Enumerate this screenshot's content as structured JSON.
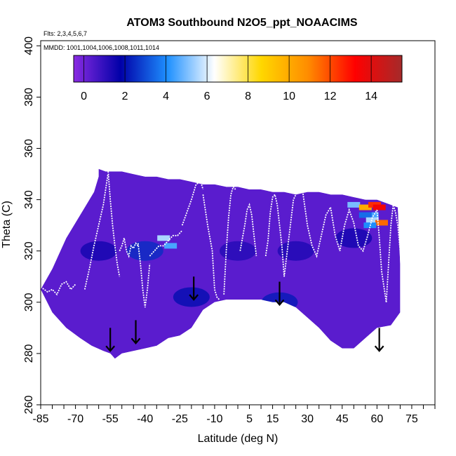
{
  "chart_data": {
    "type": "heatmap",
    "title": "ATOM3 Southbound N2O5_ppt_NOAACIMS",
    "flights_note": "Flts: 2,3,4,5,6,7",
    "dates_note": "MMDD: 1001,1004,1006,1008,1011,1014",
    "xlabel": "Latitude (deg N)",
    "ylabel": "Theta (C)",
    "xlim": [
      -85,
      85
    ],
    "ylim": [
      260,
      402
    ],
    "x_ticks": [
      -85,
      -70,
      -55,
      -40,
      -25,
      -10,
      5,
      15,
      30,
      45,
      60,
      75
    ],
    "y_ticks": [
      260,
      280,
      300,
      320,
      340,
      360,
      380,
      400
    ],
    "colorbar": {
      "range": [
        -0.5,
        15.5
      ],
      "ticks": [
        0,
        2,
        4,
        6,
        8,
        10,
        12,
        14
      ],
      "colors": [
        "#8a2be2",
        "#0000a8",
        "#1e90ff",
        "#ffffff",
        "#ffd700",
        "#ff8c00",
        "#ff0000",
        "#a52a2a"
      ]
    },
    "field_outline": {
      "lat": [
        -85,
        -80,
        -77,
        -74,
        -70,
        -66,
        -62,
        -60,
        -60,
        -57,
        -53,
        -50,
        -45,
        -40,
        -35,
        -30,
        -25,
        -20,
        -15,
        -10,
        -5,
        0,
        5,
        10,
        15,
        20,
        25,
        30,
        35,
        40,
        45,
        50,
        55,
        60,
        63,
        66,
        69,
        70,
        70,
        66,
        60,
        55,
        50,
        45,
        40,
        35,
        30,
        25,
        20,
        15,
        10,
        5,
        0,
        -5,
        -10,
        -15,
        -20,
        -25,
        -30,
        -35,
        -40,
        -45,
        -50,
        -53,
        -55,
        -58,
        -63,
        -68,
        -74,
        -80,
        -85
      ],
      "theta": [
        305,
        313,
        319,
        325,
        331,
        337,
        343,
        349,
        352,
        351,
        351,
        351,
        350,
        349,
        349,
        348,
        348,
        347,
        346,
        346,
        345,
        345,
        344,
        344,
        343,
        343,
        342,
        343,
        343,
        342,
        342,
        341,
        340,
        340,
        339,
        338,
        337,
        315,
        296,
        291,
        290,
        286,
        282,
        282,
        285,
        290,
        294,
        298,
        300,
        300,
        301,
        301,
        301,
        301,
        300,
        297,
        290,
        287,
        286,
        283,
        282,
        281,
        280,
        278,
        280,
        281,
        283,
        286,
        290,
        296,
        305
      ]
    },
    "troughs": [
      {
        "lat": -60,
        "theta": 320,
        "value": 1.5
      },
      {
        "lat": -40,
        "theta": 320,
        "value": 2.5
      },
      {
        "lat": -20,
        "theta": 302,
        "value": 2.0
      },
      {
        "lat": 0,
        "theta": 320,
        "value": 1.2
      },
      {
        "lat": 18,
        "theta": 300,
        "value": 2.2
      },
      {
        "lat": 25,
        "theta": 320,
        "value": 1.3
      },
      {
        "lat": 50,
        "theta": 325,
        "value": 1.5
      }
    ],
    "hotspots": [
      {
        "lat": -32,
        "theta": 325,
        "value": 5.5
      },
      {
        "lat": -29,
        "theta": 322,
        "value": 4.5
      },
      {
        "lat": 50,
        "theta": 338,
        "value": 5.0
      },
      {
        "lat": 55,
        "theta": 337,
        "value": 10.0
      },
      {
        "lat": 59,
        "theta": 338,
        "value": 12.5
      },
      {
        "lat": 61,
        "theta": 337,
        "value": 13.5
      },
      {
        "lat": 58,
        "theta": 334,
        "value": 4.5
      },
      {
        "lat": 55,
        "theta": 334,
        "value": 3.5
      },
      {
        "lat": 58,
        "theta": 332,
        "value": 5.5
      },
      {
        "lat": 62,
        "theta": 331,
        "value": 11.5
      },
      {
        "lat": 57,
        "theta": 330,
        "value": 4.0
      }
    ],
    "flight_tracks": [
      {
        "lat": [
          -85,
          -82,
          -80,
          -78,
          -76,
          -74,
          -72,
          -70
        ],
        "theta": [
          306,
          304,
          305,
          303,
          307,
          308,
          305,
          307
        ]
      },
      {
        "lat": [
          -66,
          -64,
          -62,
          -60,
          -58,
          -57,
          -56
        ],
        "theta": [
          305,
          313,
          322,
          330,
          338,
          344,
          350
        ]
      },
      {
        "lat": [
          -56,
          -55,
          -54,
          -53,
          -52,
          -51
        ],
        "theta": [
          352,
          340,
          330,
          322,
          315,
          310
        ]
      },
      {
        "lat": [
          -51,
          -50,
          -49,
          -48,
          -47,
          -46,
          -45,
          -44,
          -43
        ],
        "theta": [
          320,
          322,
          325,
          320,
          318,
          322,
          321,
          323,
          322
        ]
      },
      {
        "lat": [
          -43,
          -42,
          -41,
          -40,
          -39,
          -38
        ],
        "theta": [
          323,
          315,
          305,
          298,
          305,
          315
        ]
      },
      {
        "lat": [
          -38,
          -36,
          -34,
          -32,
          -30,
          -28,
          -26,
          -24
        ],
        "theta": [
          318,
          320,
          322,
          322,
          324,
          326,
          326,
          328
        ]
      },
      {
        "lat": [
          -24,
          -22,
          -20,
          -18,
          -16,
          -15
        ],
        "theta": [
          330,
          335,
          340,
          346,
          347,
          344
        ]
      },
      {
        "lat": [
          -15,
          -13,
          -11,
          -10,
          -9,
          -8
        ],
        "theta": [
          342,
          330,
          320,
          305,
          302,
          301
        ]
      },
      {
        "lat": [
          -6,
          -5,
          -4,
          -3,
          -2,
          -1
        ],
        "theta": [
          303,
          320,
          333,
          342,
          345,
          344
        ]
      },
      {
        "lat": [
          1,
          3,
          4,
          5,
          6,
          7,
          8
        ],
        "theta": [
          320,
          330,
          336,
          338,
          334,
          326,
          318
        ]
      },
      {
        "lat": [
          12,
          13,
          14,
          15,
          16,
          17,
          18,
          19,
          20
        ],
        "theta": [
          318,
          324,
          335,
          341,
          342,
          338,
          330,
          322,
          310
        ]
      },
      {
        "lat": [
          20,
          22,
          24,
          26,
          28,
          30
        ],
        "theta": [
          310,
          325,
          340,
          344,
          343,
          330
        ]
      },
      {
        "lat": [
          30,
          32,
          34,
          36,
          38,
          40
        ],
        "theta": [
          330,
          322,
          318,
          326,
          334,
          337
        ]
      },
      {
        "lat": [
          40,
          42,
          44,
          46,
          48,
          50
        ],
        "theta": [
          337,
          326,
          320,
          330,
          336,
          331
        ]
      },
      {
        "lat": [
          50,
          52,
          54,
          56,
          58,
          60
        ],
        "theta": [
          331,
          322,
          320,
          326,
          333,
          336
        ]
      },
      {
        "lat": [
          60,
          61,
          62,
          63,
          64
        ],
        "theta": [
          336,
          325,
          312,
          306,
          300
        ]
      },
      {
        "lat": [
          64,
          65,
          66,
          67,
          68,
          69,
          70
        ],
        "theta": [
          300,
          315,
          330,
          338,
          335,
          330,
          320
        ]
      }
    ],
    "arrows": [
      {
        "lat": -55,
        "theta": 285
      },
      {
        "lat": -44,
        "theta": 288
      },
      {
        "lat": -19,
        "theta": 305
      },
      {
        "lat": 18,
        "theta": 303
      },
      {
        "lat": 61,
        "theta": 285
      }
    ]
  }
}
